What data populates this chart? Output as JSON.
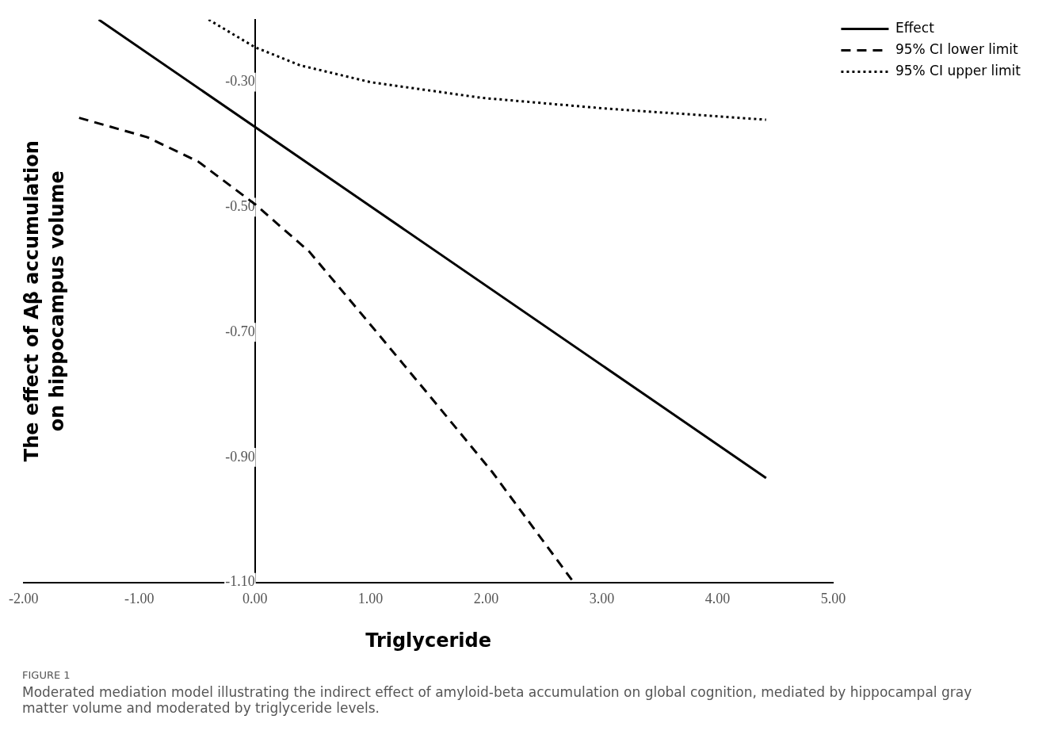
{
  "chart_data": {
    "type": "line",
    "xlabel": "Triglyceride",
    "ylabel": "The effect of Aβ accumulation\non hippocampus volume",
    "xlim": [
      -2,
      5
    ],
    "ylim": [
      -1.1,
      -0.2
    ],
    "xticks": [
      {
        "value": -2,
        "label": "-2.00"
      },
      {
        "value": -1,
        "label": "-1.00"
      },
      {
        "value": 0,
        "label": "0.00"
      },
      {
        "value": 1,
        "label": "1.00"
      },
      {
        "value": 2,
        "label": "2.00"
      },
      {
        "value": 3,
        "label": "3.00"
      },
      {
        "value": 4,
        "label": "4.00"
      },
      {
        "value": 5,
        "label": "5.00"
      }
    ],
    "yticks": [
      {
        "value": -0.3,
        "label": "-0.30"
      },
      {
        "value": -0.5,
        "label": "-0.50"
      },
      {
        "value": -0.7,
        "label": "-0.70"
      },
      {
        "value": -0.9,
        "label": "-0.90"
      },
      {
        "value": -1.1,
        "label": "-1.10"
      }
    ],
    "grid": false,
    "legend": "top right",
    "marker": "none",
    "series": [
      {
        "name": "Effect",
        "color": "#000000",
        "line_style": "solid",
        "x": [
          -1.35,
          4.42
        ],
        "values": [
          -0.2,
          -0.933
        ]
      },
      {
        "name": "95% CI lower limit",
        "color": "#000000",
        "line_style": "dashed",
        "x": [
          -1.52,
          -0.93,
          -0.49,
          0,
          0.47,
          1.0,
          1.53,
          2.05,
          2.74
        ],
        "values": [
          -0.357,
          -0.388,
          -0.427,
          -0.495,
          -0.571,
          -0.688,
          -0.806,
          -0.923,
          -1.096
        ]
      },
      {
        "name": "95% CI upper limit",
        "color": "#000000",
        "line_style": "dotted",
        "x": [
          -0.4,
          0,
          0.39,
          1.0,
          1.96,
          3.02,
          4.42
        ],
        "values": [
          -0.2,
          -0.244,
          -0.273,
          -0.3,
          -0.325,
          -0.342,
          -0.36
        ]
      }
    ],
    "annotations": [
      "FIGURE 1",
      "Moderated mediation model illustrating the indirect effect of amyloid-beta accumulation on global cognition, mediated by hippocampal gray matter volume and moderated by triglyceride levels."
    ]
  }
}
